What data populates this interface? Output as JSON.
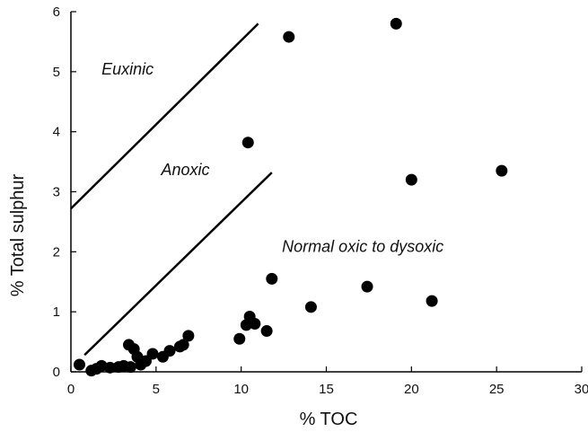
{
  "chart_data": {
    "type": "scatter",
    "title": "",
    "xlabel": "% TOC",
    "ylabel": "% Total sulphur",
    "xlim": [
      0,
      30
    ],
    "ylim": [
      0,
      6
    ],
    "xticks": [
      "0",
      "5",
      "10",
      "15",
      "20",
      "25",
      "30"
    ],
    "yticks": [
      "0",
      "1",
      "2",
      "3",
      "4",
      "5",
      "6"
    ],
    "grid": false,
    "legend": "none",
    "marker_color": "#000000",
    "points": [
      {
        "x": 0.5,
        "y": 0.12
      },
      {
        "x": 1.2,
        "y": 0.02
      },
      {
        "x": 1.5,
        "y": 0.05
      },
      {
        "x": 1.8,
        "y": 0.1
      },
      {
        "x": 2.3,
        "y": 0.07
      },
      {
        "x": 2.8,
        "y": 0.08
      },
      {
        "x": 3.1,
        "y": 0.1
      },
      {
        "x": 3.4,
        "y": 0.45
      },
      {
        "x": 3.5,
        "y": 0.08
      },
      {
        "x": 3.7,
        "y": 0.38
      },
      {
        "x": 3.9,
        "y": 0.25
      },
      {
        "x": 4.1,
        "y": 0.12
      },
      {
        "x": 4.4,
        "y": 0.18
      },
      {
        "x": 4.8,
        "y": 0.3
      },
      {
        "x": 5.4,
        "y": 0.25
      },
      {
        "x": 5.8,
        "y": 0.35
      },
      {
        "x": 6.4,
        "y": 0.42
      },
      {
        "x": 6.6,
        "y": 0.45
      },
      {
        "x": 6.9,
        "y": 0.6
      },
      {
        "x": 9.9,
        "y": 0.55
      },
      {
        "x": 10.3,
        "y": 0.78
      },
      {
        "x": 10.5,
        "y": 0.92
      },
      {
        "x": 10.8,
        "y": 0.8
      },
      {
        "x": 11.5,
        "y": 0.68
      },
      {
        "x": 11.8,
        "y": 1.55
      },
      {
        "x": 14.1,
        "y": 1.08
      },
      {
        "x": 17.4,
        "y": 1.42
      },
      {
        "x": 21.2,
        "y": 1.18
      },
      {
        "x": 10.4,
        "y": 3.82
      },
      {
        "x": 12.8,
        "y": 5.58
      },
      {
        "x": 19.1,
        "y": 5.8
      },
      {
        "x": 20.0,
        "y": 3.2
      },
      {
        "x": 25.3,
        "y": 3.35
      }
    ],
    "boundary_lines": [
      {
        "from": [
          0.0,
          2.72
        ],
        "to": [
          11.0,
          5.8
        ]
      },
      {
        "from": [
          0.8,
          0.28
        ],
        "to": [
          11.8,
          3.32
        ]
      }
    ],
    "annotations": [
      {
        "text": "Euxinic",
        "x": 1.8,
        "y": 4.95
      },
      {
        "text": "Anoxic",
        "x": 5.3,
        "y": 3.28
      },
      {
        "text": "Normal oxic to dysoxic",
        "x": 12.4,
        "y": 2.0
      }
    ]
  }
}
